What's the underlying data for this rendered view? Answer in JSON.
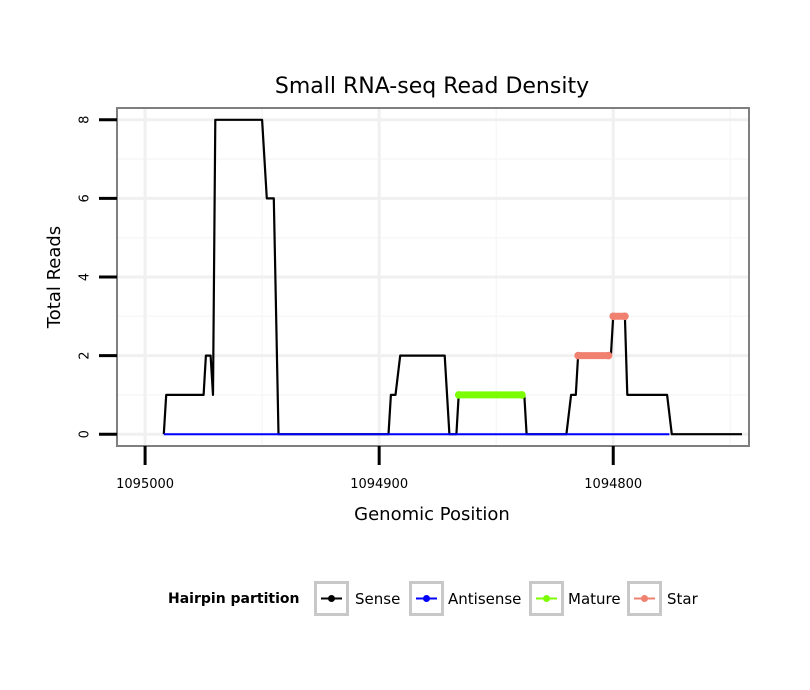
{
  "chart_data": {
    "type": "line",
    "title": "Small RNA-seq Read Density",
    "xlabel": "Genomic Position",
    "ylabel": "Total Reads",
    "xlim": [
      1095012,
      1094742
    ],
    "ylim": [
      -0.3,
      8.3
    ],
    "x_reversed": true,
    "x_ticks": [
      1095000,
      1094900,
      1094800
    ],
    "x_tick_labels": [
      "1095000",
      "1094900",
      "1094800"
    ],
    "y_ticks": [
      0,
      2,
      4,
      6,
      8
    ],
    "y_tick_labels": [
      "0",
      "2",
      "4",
      "6",
      "8"
    ],
    "grid": true,
    "legend": {
      "title": "Hairpin partition",
      "position": "bottom",
      "entries": [
        {
          "name": "Sense",
          "color": "#000000"
        },
        {
          "name": "Antisense",
          "color": "#0000ff"
        },
        {
          "name": "Mature",
          "color": "#7cfc00"
        },
        {
          "name": "Star",
          "color": "#f08070"
        }
      ]
    },
    "series": [
      {
        "name": "Sense",
        "color": "#000000",
        "points": [
          [
            1094992,
            0
          ],
          [
            1094991,
            1
          ],
          [
            1094975,
            1
          ],
          [
            1094974,
            2
          ],
          [
            1094972,
            2
          ],
          [
            1094971,
            1
          ],
          [
            1094970,
            8
          ],
          [
            1094950,
            8
          ],
          [
            1094948,
            6
          ],
          [
            1094945,
            6
          ],
          [
            1094943,
            0
          ],
          [
            1094896,
            0
          ],
          [
            1094895,
            1
          ],
          [
            1094893,
            1
          ],
          [
            1094891,
            2
          ],
          [
            1094872,
            2
          ],
          [
            1094870,
            0
          ],
          [
            1094867,
            0
          ],
          [
            1094866,
            1
          ],
          [
            1094838,
            1
          ],
          [
            1094837,
            0
          ],
          [
            1094820,
            0
          ],
          [
            1094818,
            1
          ],
          [
            1094816,
            1
          ],
          [
            1094815,
            2
          ],
          [
            1094801,
            2
          ],
          [
            1094800,
            3
          ],
          [
            1094795,
            3
          ],
          [
            1094794,
            1
          ],
          [
            1094777,
            1
          ],
          [
            1094775,
            0
          ],
          [
            1094745,
            0
          ]
        ]
      },
      {
        "name": "Antisense",
        "color": "#0000ff",
        "points": [
          [
            1094992,
            0
          ],
          [
            1094776,
            0
          ]
        ]
      },
      {
        "name": "Mature",
        "color": "#7cfc00",
        "points": [
          [
            1094866,
            1
          ],
          [
            1094839,
            1
          ]
        ]
      },
      {
        "name": "Star",
        "color": "#f08070",
        "segments": [
          {
            "points": [
              [
                1094815,
                2
              ],
              [
                1094802,
                2
              ]
            ]
          },
          {
            "points": [
              [
                1094800,
                3
              ],
              [
                1094795,
                3
              ]
            ]
          }
        ]
      }
    ]
  }
}
